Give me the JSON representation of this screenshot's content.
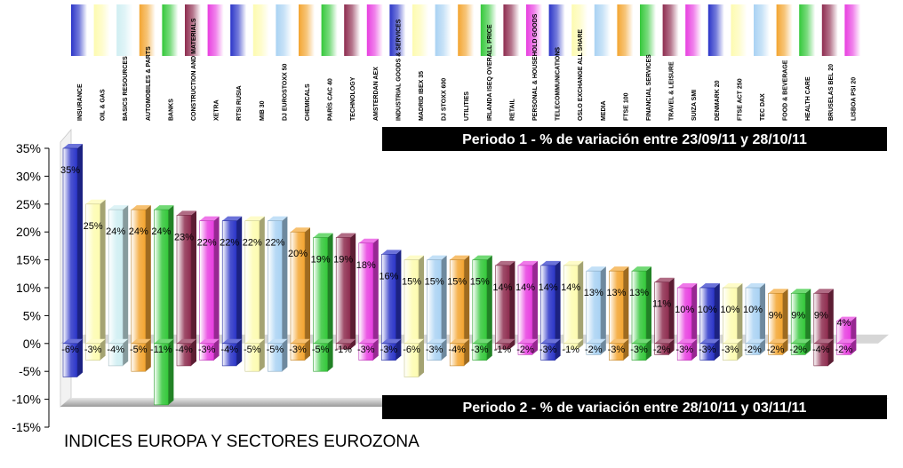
{
  "chart_data": {
    "type": "bar",
    "title": "INDICES EUROPA Y SECTORES EUROZONA",
    "ylim": [
      -15,
      35
    ],
    "y_ticks": [
      "35%",
      "30%",
      "25%",
      "20%",
      "15%",
      "10%",
      "5%",
      "0%",
      "-5%",
      "-10%",
      "-15%"
    ],
    "y_tick_values": [
      35,
      30,
      25,
      20,
      15,
      10,
      5,
      0,
      -5,
      -10,
      -15
    ],
    "grid": false,
    "legend": "none",
    "categories": [
      "INSURANCE",
      "OIL & GAS",
      "BASICS RESOURCES",
      "AUTOMOBILES & PARTS",
      "BANKS",
      "CONSTRUCTION AND MATERIALS",
      "XETRA",
      "RTSI RUSIA",
      "MIB 30",
      "DJ EUROSTOXX 50",
      "CHEMICALS",
      "PARÍS CAC 40",
      "TECHNOLOGY",
      "AMSTERDAN AEX",
      "INDUSTRIAL GOODS & SERVICES",
      "MADRID IBEX 35",
      "DJ STOXX 600",
      "UTILITIES",
      "IRLANDA ISEQ OVERALL PRICE",
      "RETAIL",
      "PERSONAL & HOUSEHOLD GOODS",
      "TELECOMMUNICATIONS",
      "OSLO EXCHANGE ALL SHARE",
      "MEDIA",
      "FTSE 100",
      "FINANCIAL SERVICES",
      "TRAVEL & LEISURE",
      "SUIZA SMI",
      "DENMARK 20",
      "FTSE ACT 250",
      "TEC DAX",
      "FOOD & BEVERAGE",
      "HEALTH CARE",
      "BRUSELAS BEL 20",
      "LISBOA PSI 20"
    ],
    "colors": [
      "#2b35c8",
      "#fdfbb0",
      "#cfeef2",
      "#f3a531",
      "#34c83a",
      "#8e2c4f",
      "#e83ee0",
      "#2b35c8",
      "#fdfbb0",
      "#a9d2f3",
      "#f3a531",
      "#34c83a",
      "#8e2c4f",
      "#e83ee0",
      "#2b35c8",
      "#fdfbb0",
      "#a9d2f3",
      "#f3a531",
      "#34c83a",
      "#8e2c4f",
      "#e83ee0",
      "#2b35c8",
      "#fdfbb0",
      "#a9d2f3",
      "#f3a531",
      "#34c83a",
      "#8e2c4f",
      "#e83ee0",
      "#2b35c8",
      "#fdfbb0",
      "#a9d2f3",
      "#f3a531",
      "#34c83a",
      "#8e2c4f",
      "#e83ee0"
    ],
    "series": [
      {
        "name": "Periodo 1 -  % de variación entre  23/09/11  y  28/10/11",
        "values": [
          35,
          25,
          24,
          24,
          24,
          23,
          22,
          22,
          22,
          22,
          20,
          19,
          19,
          18,
          16,
          15,
          15,
          15,
          15,
          14,
          14,
          14,
          14,
          13,
          13,
          13,
          11,
          10,
          10,
          10,
          10,
          9,
          9,
          9,
          4
        ],
        "labels": [
          "35%",
          "25%",
          "24%",
          "24%",
          "24%",
          "23%",
          "22%",
          "22%",
          "22%",
          "22%",
          "20%",
          "19%",
          "19%",
          "18%",
          "16%",
          "15%",
          "15%",
          "15%",
          "15%",
          "14%",
          "14%",
          "14%",
          "14%",
          "13%",
          "13%",
          "13%",
          "11%",
          "10%",
          "10%",
          "10%",
          "10%",
          "9%",
          "9%",
          "9%",
          "4%"
        ]
      },
      {
        "name": "Periodo 2 -  % de variación entre  28/10/11  y  03/11/11",
        "values": [
          -6,
          -3,
          -4,
          -5,
          -11,
          -4,
          -3,
          -4,
          -5,
          -5,
          -3,
          -5,
          -1,
          -3,
          -3,
          -6,
          -3,
          -4,
          -3,
          -1,
          -2,
          -3,
          -1,
          -2,
          -3,
          -3,
          -2,
          -3,
          -3,
          -3,
          -2,
          -2,
          -2,
          -4,
          -2
        ],
        "labels": [
          "-6%",
          "-3%",
          "-4%",
          "-5%",
          "-11%",
          "-4%",
          "-3%",
          "-4%",
          "-5%",
          "-5%",
          "-3%",
          "-5%",
          "-1%",
          "-3%",
          "-3%",
          "-6%",
          "-3%",
          "-4%",
          "-3%",
          "-1%",
          "-2%",
          "-3%",
          "-1%",
          "-2%",
          "-3%",
          "-3%",
          "-2%",
          "-3%",
          "-3%",
          "-3%",
          "-2%",
          "-2%",
          "-2%",
          "-4%",
          "-2%"
        ]
      }
    ]
  }
}
